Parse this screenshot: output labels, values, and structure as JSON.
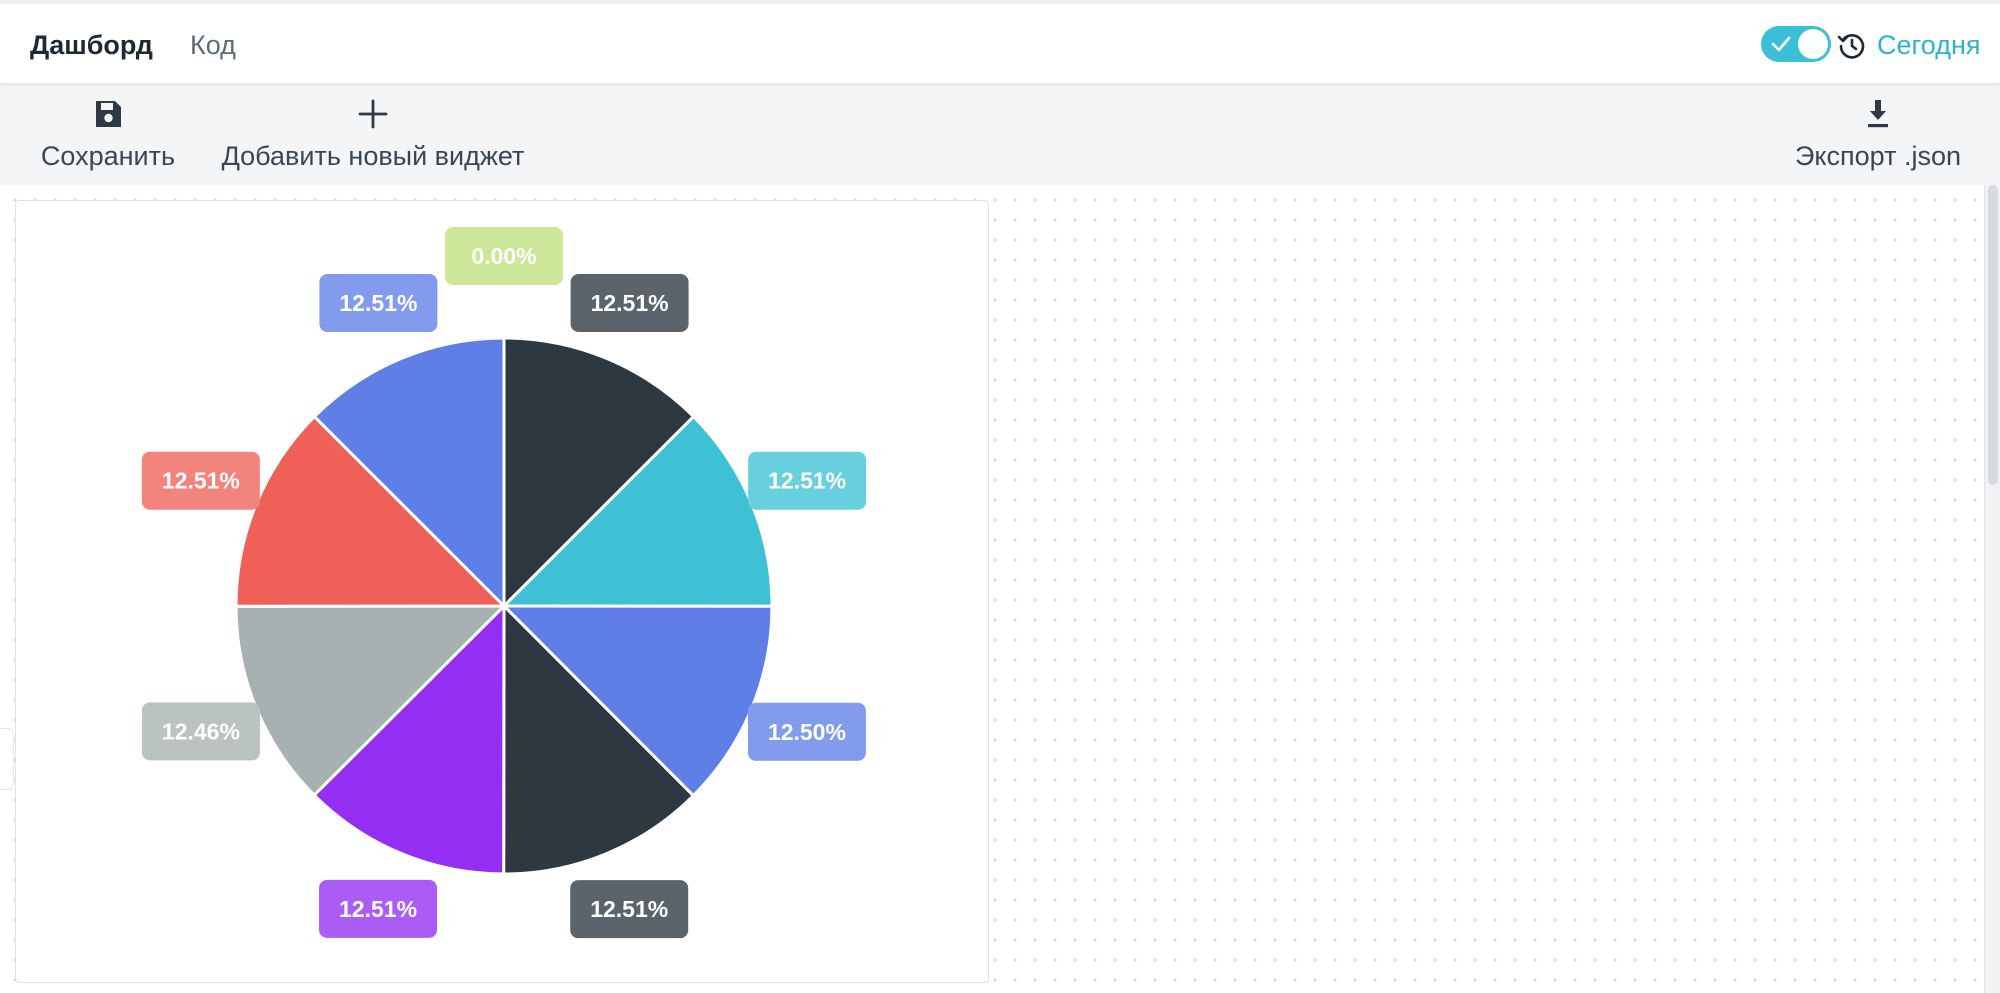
{
  "tabs": {
    "dashboard": "Дашборд",
    "code": "Код"
  },
  "header": {
    "today_label": "Сегодня",
    "toggle_on": true
  },
  "toolbar": {
    "save_label": "Сохранить",
    "add_widget_label": "Добавить новый виджет",
    "export_label": "Экспорт .json"
  },
  "icons": {
    "save": "floppy-disk-icon",
    "add": "plus-icon",
    "export": "download-icon",
    "history": "history-clock-icon",
    "toggle_check": "check-icon"
  },
  "colors": {
    "accent": "#3bbfd6",
    "link": "#2fb3cb"
  },
  "chart_data": {
    "type": "pie",
    "title": "",
    "start_angle_deg": 0,
    "direction": "clockwise",
    "slices": [
      {
        "value": 0.0,
        "label": "0.00%",
        "color": "#bde07a"
      },
      {
        "value": 12.51,
        "label": "12.51%",
        "color": "#2e3841"
      },
      {
        "value": 12.51,
        "label": "12.51%",
        "color": "#3ec1d5"
      },
      {
        "value": 12.5,
        "label": "12.50%",
        "color": "#5f7fe6"
      },
      {
        "value": 12.51,
        "label": "12.51%",
        "color": "#2e3841"
      },
      {
        "value": 12.51,
        "label": "12.51%",
        "color": "#932ef2"
      },
      {
        "value": 12.46,
        "label": "12.46%",
        "color": "#a8b1b1"
      },
      {
        "value": 12.51,
        "label": "12.51%",
        "color": "#ef6058"
      },
      {
        "value": 12.51,
        "label": "12.51%",
        "color": "#5f7fe6"
      }
    ]
  }
}
